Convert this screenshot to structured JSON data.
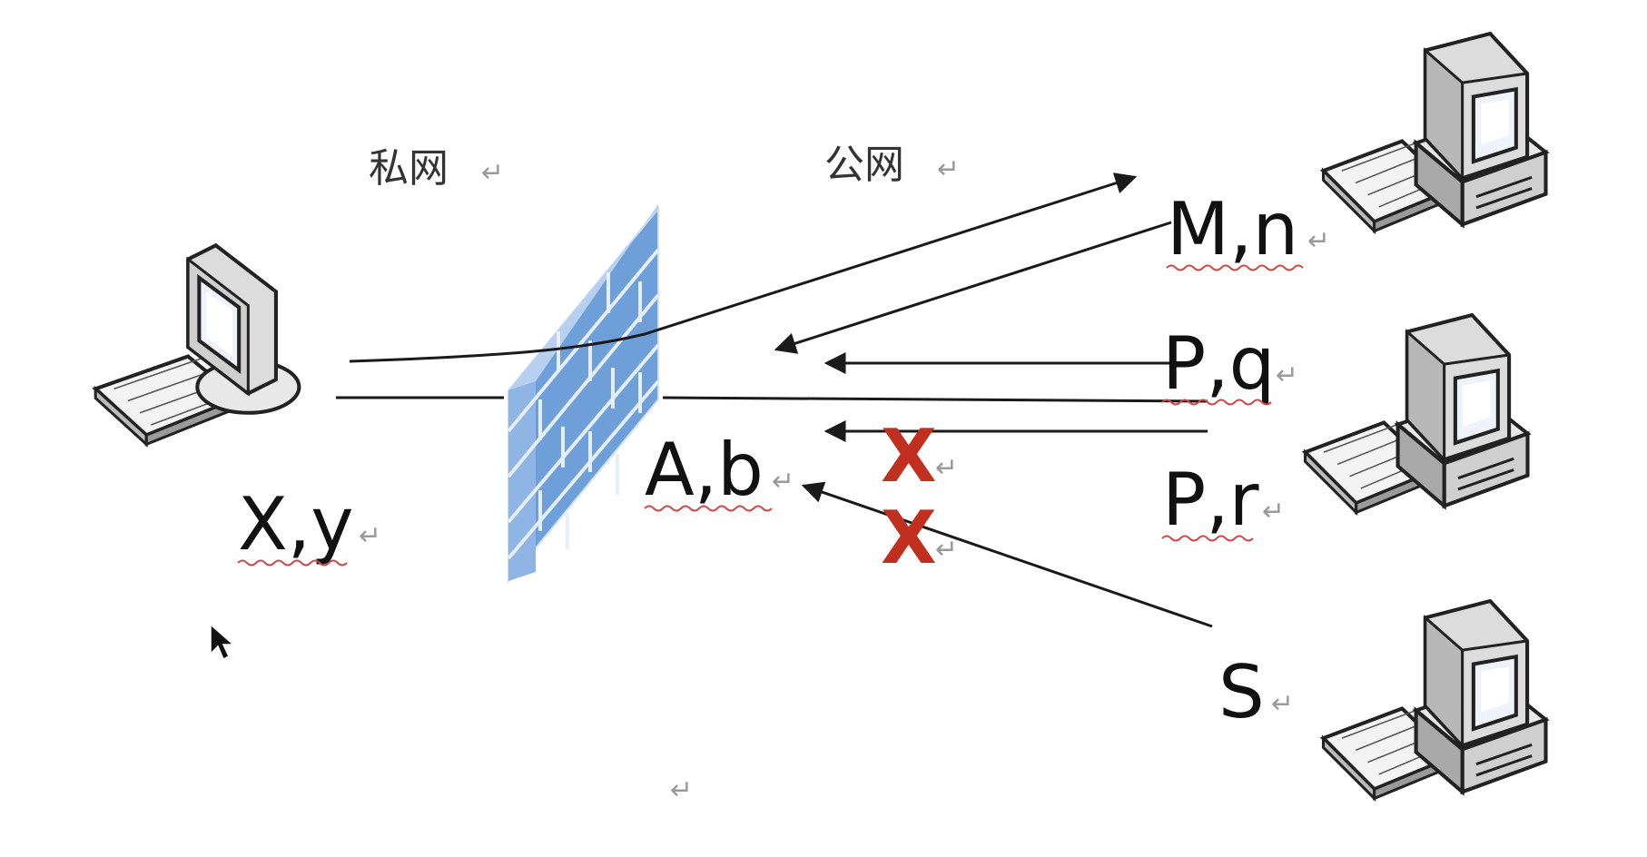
{
  "labels": {
    "private_net": "私网",
    "public_net": "公网",
    "host_private": "X,y",
    "nat_gateway": "A,b",
    "host_mn": "M,n",
    "host_pq": "P,q",
    "host_pr": "P,r",
    "host_s": "S",
    "blocked_1": "X",
    "blocked_2": "X"
  },
  "colors": {
    "firewall_brick": "#6f9fd8",
    "firewall_mortar": "#cfe0f5",
    "blocked_mark": "#c1301f",
    "line": "#1a1a1a"
  },
  "icons": [
    "computer-icon",
    "firewall-icon",
    "mouse-cursor-icon"
  ]
}
